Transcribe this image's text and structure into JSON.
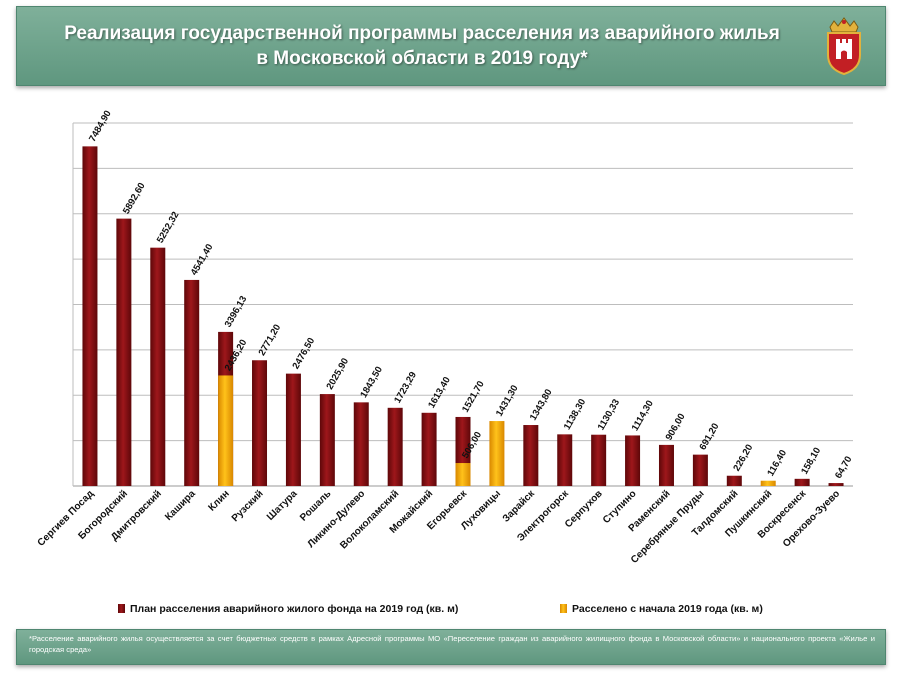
{
  "header": {
    "title_line1": "Реализация государственной программы расселения из аварийного жилья",
    "title_line2": "в Московской области в 2019 году*",
    "emblem_icon": "coat-of-arms-icon"
  },
  "chart_data": {
    "type": "bar",
    "categories": [
      "Сергиев Посад",
      "Богородский",
      "Дмитровский",
      "Кашира",
      "Клин",
      "Рузский",
      "Шатура",
      "Рошаль",
      "Ликино-Дулево",
      "Волоколамский",
      "Можайский",
      "Егорьевск",
      "Луховицы",
      "Зарайск",
      "Электрогорск",
      "Серпухов",
      "Ступино",
      "Раменский",
      "Серебряные Пруды",
      "Талдомский",
      "Пушкинский",
      "Воскресенск",
      "Орехово-Зуево"
    ],
    "series": [
      {
        "name": "План расселения аварийного жилого фонда на 2019 год (кв. м)",
        "color": "#8b1014",
        "values": [
          7484.9,
          5892.6,
          5252.32,
          4541.4,
          3396.13,
          2771.2,
          2476.5,
          2025.9,
          1843.5,
          1723.29,
          1613.4,
          1521.7,
          null,
          1343.8,
          1138.3,
          1130.33,
          1114.3,
          906.0,
          691.2,
          226.2,
          null,
          158.1,
          64.7
        ],
        "labels": [
          "7484,90",
          "5892,60",
          "5252,32",
          "4541,40",
          "3396,13",
          "2771,20",
          "2476,50",
          "2025,90",
          "1843,50",
          "1723,29",
          "1613,40",
          "1521,70",
          null,
          "1343,80",
          "1138,30",
          "1130,33",
          "1114,30",
          "906,00",
          "691,20",
          "226,20",
          null,
          "158,10",
          "64,70"
        ]
      },
      {
        "name": "Расселено с начала 2019 года (кв. м)",
        "color": "#f3a600",
        "values": [
          null,
          null,
          null,
          null,
          2436.2,
          null,
          null,
          null,
          null,
          null,
          null,
          506.0,
          1431.3,
          null,
          null,
          null,
          null,
          null,
          null,
          null,
          116.4,
          null,
          null
        ],
        "labels": [
          null,
          null,
          null,
          null,
          "2436,20",
          null,
          null,
          null,
          null,
          null,
          null,
          "506,00",
          "1431,30",
          null,
          null,
          null,
          null,
          null,
          null,
          null,
          "116,40",
          null,
          null
        ]
      }
    ],
    "ylim": [
      0,
      8000
    ],
    "grid": true,
    "legend_position": "bottom"
  },
  "legend": {
    "plan_label": "План расселения аварийного жилого фонда на 2019 год (кв. м)",
    "done_label": "Расселено с начала 2019 года (кв. м)"
  },
  "footer": {
    "note": "*Расселение аварийного жилья осуществляется за счет бюджетных средств в рамках Адресной программы МО «Переселение граждан из аварийного жилищного фонда в Московской области» и национального проекта «Жилье и городская среда»"
  }
}
